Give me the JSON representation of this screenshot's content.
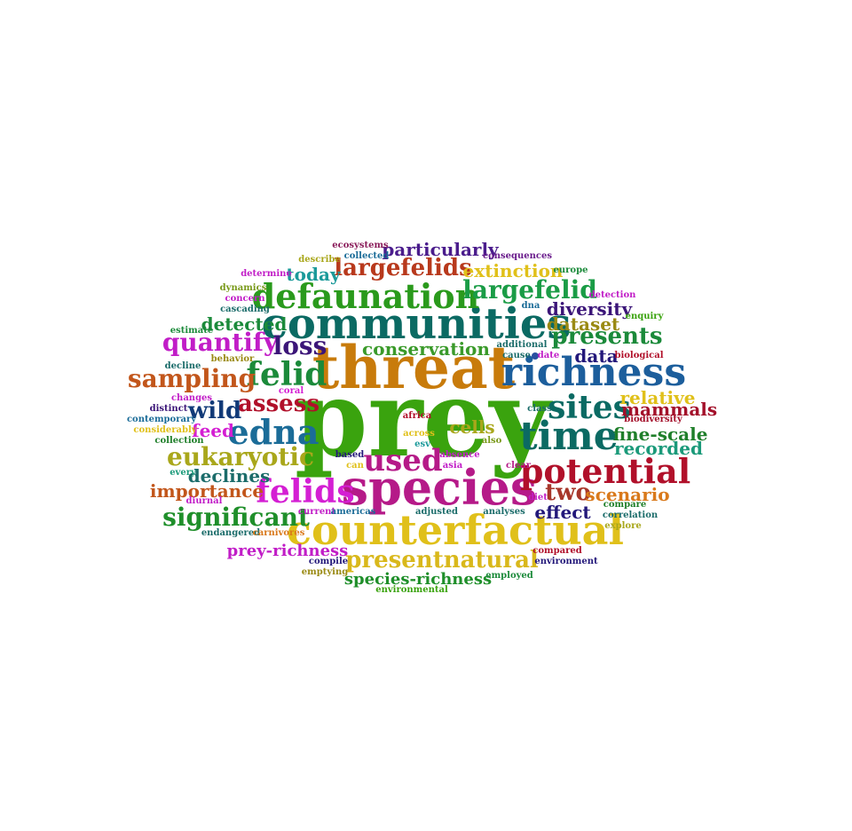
{
  "words": [
    {
      "text": "prey",
      "color": "#3aa30e"
    },
    {
      "text": "threat",
      "color": "#c87b0b"
    },
    {
      "text": "species",
      "color": "#b51a88"
    },
    {
      "text": "counterfactual",
      "color": "#e0c01a"
    },
    {
      "text": "communities",
      "color": "#0b6a63"
    },
    {
      "text": "richness",
      "color": "#1c5e9c"
    },
    {
      "text": "time",
      "color": "#0b6a63"
    },
    {
      "text": "potential",
      "color": "#b1102a"
    },
    {
      "text": "defaunation",
      "color": "#2a9a1c"
    },
    {
      "text": "felids",
      "color": "#d41fd3"
    },
    {
      "text": "edna",
      "color": "#1b6c98"
    },
    {
      "text": "sites",
      "color": "#0b6a63"
    },
    {
      "text": "felid",
      "color": "#1b8a3a"
    },
    {
      "text": "used",
      "color": "#b51a88"
    },
    {
      "text": "significant",
      "color": "#1f8f2a"
    },
    {
      "text": "presentnatural",
      "color": "#d9b81b"
    },
    {
      "text": "largefelid",
      "color": "#1a9c46"
    },
    {
      "text": "largefelids",
      "color": "#b8391c"
    },
    {
      "text": "sampling",
      "color": "#c2561b"
    },
    {
      "text": "eukaryotic",
      "color": "#a9a71b"
    },
    {
      "text": "quantify",
      "color": "#c11dc7"
    },
    {
      "text": "presents",
      "color": "#1b8a3a"
    },
    {
      "text": "loss",
      "color": "#3b1578"
    },
    {
      "text": "assess",
      "color": "#b1102a"
    },
    {
      "text": "wild",
      "color": "#113a78"
    },
    {
      "text": "two",
      "color": "#a7362a"
    },
    {
      "text": "particularly",
      "color": "#4a1c8c"
    },
    {
      "text": "extinction",
      "color": "#e0c01a"
    },
    {
      "text": "prey-richness",
      "color": "#c11dc7"
    },
    {
      "text": "species-richness",
      "color": "#1f8f2a"
    },
    {
      "text": "today",
      "color": "#1b9a9a"
    },
    {
      "text": "conservation",
      "color": "#3a9a2a"
    },
    {
      "text": "detected",
      "color": "#1b8a3a"
    },
    {
      "text": "diversity",
      "color": "#3b1578"
    },
    {
      "text": "dataset",
      "color": "#9a8a14"
    },
    {
      "text": "importance",
      "color": "#c2561b"
    },
    {
      "text": "declines",
      "color": "#1b6c6a"
    },
    {
      "text": "fine-scale",
      "color": "#1f7f2a"
    },
    {
      "text": "relative",
      "color": "#e0c01a"
    },
    {
      "text": "mammals",
      "color": "#a3102a"
    },
    {
      "text": "recorded",
      "color": "#1b9a7a"
    },
    {
      "text": "scenario",
      "color": "#d9791b"
    },
    {
      "text": "effect",
      "color": "#23187a"
    },
    {
      "text": "data",
      "color": "#23187a"
    },
    {
      "text": "cells",
      "color": "#a9a71b"
    },
    {
      "text": "feed",
      "color": "#d41fd3"
    },
    {
      "text": "ecosystems",
      "color": "#8a1c5a"
    },
    {
      "text": "consequences",
      "color": "#6a1c8c"
    },
    {
      "text": "collected",
      "color": "#1b6c98"
    },
    {
      "text": "describe",
      "color": "#a9a71b"
    },
    {
      "text": "determine",
      "color": "#c11dc7"
    },
    {
      "text": "europe",
      "color": "#1b8a3a"
    },
    {
      "text": "detection",
      "color": "#c11dc7"
    },
    {
      "text": "dynamics",
      "color": "#7a9a1b"
    },
    {
      "text": "concern",
      "color": "#c11dc7"
    },
    {
      "text": "cascading",
      "color": "#1b6c6a"
    },
    {
      "text": "dna",
      "color": "#1b6c98"
    },
    {
      "text": "enquiry",
      "color": "#3aa30e"
    },
    {
      "text": "estimate",
      "color": "#1b8a3a"
    },
    {
      "text": "additional",
      "color": "#1b6c6a"
    },
    {
      "text": "cause",
      "color": "#1b6c6a"
    },
    {
      "text": "date",
      "color": "#c11dc7"
    },
    {
      "text": "biological",
      "color": "#b1102a"
    },
    {
      "text": "behavior",
      "color": "#9a8a14"
    },
    {
      "text": "decline",
      "color": "#1b6c6a"
    },
    {
      "text": "coral",
      "color": "#d41fd3"
    },
    {
      "text": "changes",
      "color": "#c11dc7"
    },
    {
      "text": "distinct",
      "color": "#3b1578"
    },
    {
      "text": "contemporary",
      "color": "#1b6c98"
    },
    {
      "text": "considerably",
      "color": "#e0c01a"
    },
    {
      "text": "collection",
      "color": "#1f7f2a"
    },
    {
      "text": "class",
      "color": "#1b6c6a"
    },
    {
      "text": "biodiversity",
      "color": "#a3102a"
    },
    {
      "text": "africa",
      "color": "#b1102a"
    },
    {
      "text": "across",
      "color": "#e0c01a"
    },
    {
      "text": "esv",
      "color": "#1b9a9a"
    },
    {
      "text": "also",
      "color": "#7a9a1b"
    },
    {
      "text": "every",
      "color": "#1b9a7a"
    },
    {
      "text": "diurnal",
      "color": "#c11dc7"
    },
    {
      "text": "based",
      "color": "#23187a"
    },
    {
      "text": "can",
      "color": "#e0c01a"
    },
    {
      "text": "absence",
      "color": "#c11dc7"
    },
    {
      "text": "asia",
      "color": "#c11dc7"
    },
    {
      "text": "clear",
      "color": "#b51a88"
    },
    {
      "text": "diet",
      "color": "#c11dc7"
    },
    {
      "text": "compare",
      "color": "#1f7f2a"
    },
    {
      "text": "correlation",
      "color": "#1b6c6a"
    },
    {
      "text": "explore",
      "color": "#a9a71b"
    },
    {
      "text": "current",
      "color": "#c11dc7"
    },
    {
      "text": "americas",
      "color": "#1b6c98"
    },
    {
      "text": "adjusted",
      "color": "#1b6c6a"
    },
    {
      "text": "analyses",
      "color": "#1b6c6a"
    },
    {
      "text": "endangered",
      "color": "#1b6c6a"
    },
    {
      "text": "carnivores",
      "color": "#d9791b"
    },
    {
      "text": "compared",
      "color": "#b1102a"
    },
    {
      "text": "environment",
      "color": "#23187a"
    },
    {
      "text": "compile",
      "color": "#23187a"
    },
    {
      "text": "emptying",
      "color": "#9a8a14"
    },
    {
      "text": "employed",
      "color": "#1b8a3a"
    },
    {
      "text": "environmental",
      "color": "#3aa30e"
    }
  ]
}
